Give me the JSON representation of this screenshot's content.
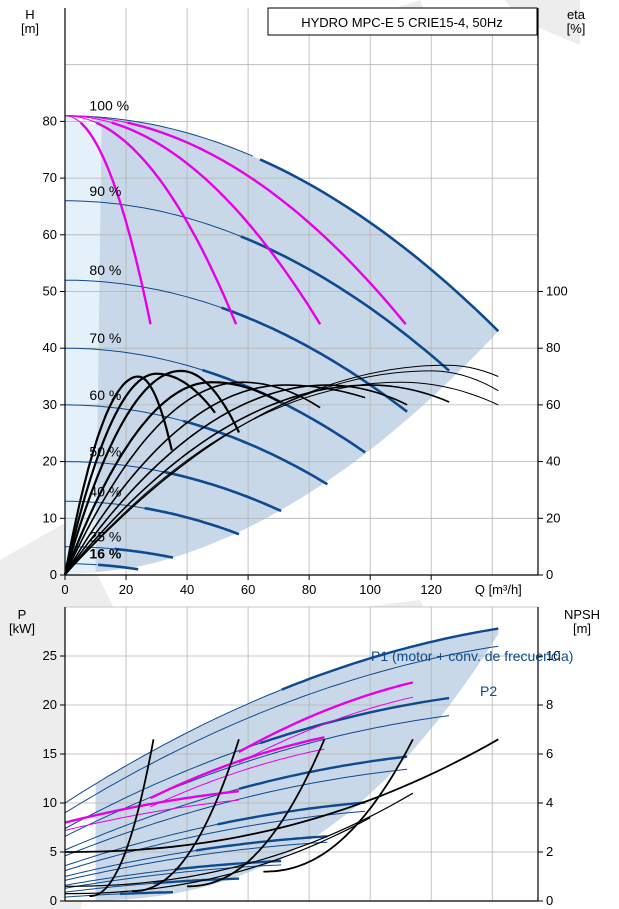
{
  "chart_data": [
    {
      "type": "line",
      "title": "HYDRO MPC-E 5 CRIE15-4, 50Hz",
      "ylabel_left": "H\n[m]",
      "ylabel_right": "eta\n[%]",
      "xlabel": "Q [m³/h]",
      "xlim": [
        0,
        155
      ],
      "ylim": [
        0,
        100
      ],
      "ylim_right": [
        0,
        200
      ],
      "x_ticks": [
        "0",
        "20",
        "40",
        "60",
        "80",
        "100",
        "120"
      ],
      "y_ticks": [
        "0",
        "10",
        "20",
        "30",
        "40",
        "50",
        "60",
        "70",
        "80"
      ],
      "y_right_ticks": [
        "0",
        "20",
        "40",
        "60",
        "80",
        "100"
      ],
      "grid": true,
      "speed_labels": [
        {
          "label": "100 %",
          "H": 81
        },
        {
          "label": "90 %",
          "H": 66
        },
        {
          "label": "80 %",
          "H": 52
        },
        {
          "label": "70 %",
          "H": 40
        },
        {
          "label": "60 %",
          "H": 30
        },
        {
          "label": "50 %",
          "H": 20
        },
        {
          "label": "40 %",
          "H": 13
        },
        {
          "label": "25 %",
          "H": 5
        },
        {
          "label": "16 %",
          "H": 2
        }
      ],
      "series": [
        {
          "group": "HQ curves at 100 % speed (magenta)",
          "color": "#e600e6",
          "curves": [
            {
              "H0": 81,
              "Qmax": 28.5,
              "Hend": 43
            },
            {
              "H0": 81,
              "Qmax": 57,
              "Hend": 43
            },
            {
              "H0": 81,
              "Qmax": 85,
              "Hend": 43
            },
            {
              "H0": 81,
              "Qmax": 113.5,
              "Hend": 43
            }
          ]
        },
        {
          "group": "HQ curves at reduced speed (blue)",
          "color": "#0d4a8f",
          "curves": [
            {
              "H0": 81,
              "Qmax": 142,
              "Hend": 43
            },
            {
              "H0": 66,
              "Qmax": 128,
              "Hend": 35
            },
            {
              "H0": 52,
              "Qmax": 114,
              "Hend": 28
            },
            {
              "H0": 40,
              "Qmax": 100,
              "Hend": 21
            },
            {
              "H0": 30,
              "Qmax": 86,
              "Hend": 16
            },
            {
              "H0": 20,
              "Qmax": 72,
              "Hend": 11
            },
            {
              "H0": 13,
              "Qmax": 58,
              "Hend": 7
            },
            {
              "H0": 5,
              "Qmax": 36,
              "Hend": 3
            },
            {
              "H0": 2,
              "Qmax": 24,
              "Hend": 1
            }
          ]
        },
        {
          "group": "efficiency curves (eta, black)",
          "color": "#000000",
          "curves": [
            {
              "Qend": 35,
              "Qpeak": 24,
              "etaPeak": 70,
              "etaEnd": 44
            },
            {
              "Qend": 50,
              "Qpeak": 30,
              "etaPeak": 71,
              "etaEnd": 56
            },
            {
              "Qend": 58,
              "Qpeak": 38,
              "etaPeak": 72,
              "etaEnd": 48
            },
            {
              "Qend": 72,
              "Qpeak": 48,
              "etaPeak": 68,
              "etaEnd": 60
            },
            {
              "Qend": 85,
              "Qpeak": 58,
              "etaPeak": 68,
              "etaEnd": 58
            },
            {
              "Qend": 100,
              "Qpeak": 72,
              "etaPeak": 67,
              "etaEnd": 62
            },
            {
              "Qend": 114,
              "Qpeak": 86,
              "etaPeak": 67,
              "etaEnd": 59
            },
            {
              "Qend": 128,
              "Qpeak": 100,
              "etaPeak": 67,
              "etaEnd": 60
            },
            {
              "Qend": 142,
              "Qpeak": 110,
              "etaPeak": 68,
              "etaEnd": 60
            },
            {
              "Qend": 142,
              "Qpeak": 120,
              "etaPeak": 72,
              "etaEnd": 65
            },
            {
              "Qend": 142,
              "Qpeak": 125,
              "etaPeak": 74,
              "etaEnd": 70
            }
          ]
        }
      ]
    },
    {
      "type": "line",
      "ylabel_left": "P\n[kW]",
      "ylabel_right": "NPSH\n[m]",
      "xlim": [
        0,
        155
      ],
      "ylim": [
        0,
        30
      ],
      "ylim_right": [
        0,
        12
      ],
      "y_ticks": [
        "0",
        "5",
        "10",
        "15",
        "20",
        "25"
      ],
      "y_right_ticks": [
        "0",
        "2",
        "4",
        "6",
        "8",
        "10"
      ],
      "grid": true,
      "labels": [
        "P1 (motor + conv. de frecuencia)",
        "P2"
      ],
      "series": [
        {
          "group": "P1 (blue thick)",
          "color": "#0d4a8f",
          "curves": [
            {
              "Qend": 142,
              "P0": 10,
              "Pend": 27.8
            },
            {
              "Qend": 128,
              "P0": 7.4,
              "Pend": 20.8
            },
            {
              "Qend": 114,
              "P0": 5.2,
              "Pend": 14.8
            },
            {
              "Qend": 100,
              "P0": 3.6,
              "Pend": 10.1
            },
            {
              "Qend": 86,
              "P0": 2.5,
              "Pend": 6.6
            },
            {
              "Qend": 72,
              "P0": 1.6,
              "Pend": 4.1
            },
            {
              "Qend": 58,
              "P0": 0.9,
              "Pend": 2.3
            },
            {
              "Qend": 36,
              "P0": 0.4,
              "Pend": 0.9
            }
          ]
        },
        {
          "group": "P2 (blue thin)",
          "color": "#0d4a8f",
          "curves": [
            {
              "Qend": 142,
              "P0": 9,
              "Pend": 26
            },
            {
              "Qend": 128,
              "P0": 6.6,
              "Pend": 19
            },
            {
              "Qend": 114,
              "P0": 4.6,
              "Pend": 13.5
            },
            {
              "Qend": 100,
              "P0": 3.1,
              "Pend": 9.2
            },
            {
              "Qend": 86,
              "P0": 2.1,
              "Pend": 6.0
            },
            {
              "Qend": 72,
              "P0": 1.3,
              "Pend": 3.7
            }
          ]
        },
        {
          "group": "P at 100 % speed (magenta)",
          "color": "#e600e6",
          "curves": [
            {
              "Qstart": 0,
              "Qend": 57,
              "P0": 8,
              "Pend": 11.2
            },
            {
              "Qstart": 0,
              "Qend": 57,
              "P0": 7.2,
              "Pend": 10.3
            },
            {
              "Qstart": 28,
              "Qend": 85,
              "P0": 10.5,
              "Pend": 16.7
            },
            {
              "Qstart": 28,
              "Qend": 85,
              "P0": 9.6,
              "Pend": 15.5
            },
            {
              "Qstart": 57,
              "Qend": 114,
              "P0": 15.2,
              "Pend": 22.3
            },
            {
              "Qstart": 57,
              "Qend": 114,
              "P0": 14.1,
              "Pend": 20.8
            }
          ]
        },
        {
          "group": "NPSH (black)",
          "color": "#000000",
          "curves": [
            {
              "Qstart": 8,
              "Qend": 29,
              "Nstart": 0.2,
              "Nend": 6.6
            },
            {
              "Qstart": 22,
              "Qend": 57,
              "Nstart": 0.4,
              "Nend": 6.6
            },
            {
              "Qstart": 40,
              "Qend": 85,
              "Nstart": 0.6,
              "Nend": 6.6
            },
            {
              "Qstart": 65,
              "Qend": 114,
              "Nstart": 1.2,
              "Nend": 6.6
            },
            {
              "Qstart": 0,
              "Qend": 142,
              "Nstart": 2,
              "Nend": 6.6
            },
            {
              "Qstart": 0,
              "Qend": 114,
              "Nstart": 0.6,
              "Nend": 4.4
            },
            {
              "Qstart": 0,
              "Qend": 100,
              "Nstart": 0.3,
              "Nend": 3.4
            }
          ]
        }
      ]
    }
  ],
  "colors": {
    "dark_blue": "#0d4a8f",
    "magenta": "#e600e6",
    "operating_area": "#c9d8e8",
    "light_area": "#e4f0fa",
    "grid": "#b4b4b4"
  }
}
